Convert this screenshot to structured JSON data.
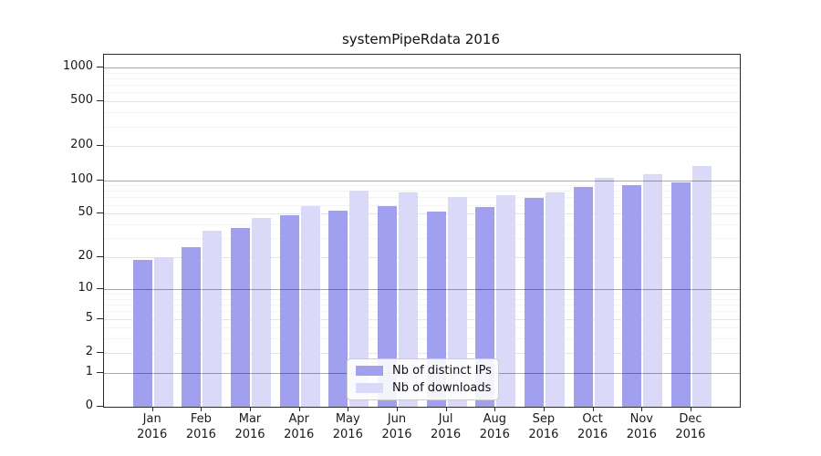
{
  "chart_data": {
    "type": "bar",
    "title": "systemPipeRdata 2016",
    "categories": [
      "Jan",
      "Feb",
      "Mar",
      "Apr",
      "May",
      "Jun",
      "Jul",
      "Aug",
      "Sep",
      "Oct",
      "Nov",
      "Dec"
    ],
    "category_year": "2016",
    "series": [
      {
        "name": "Nb of distinct IPs",
        "color": "#a0a0ee",
        "values": [
          19,
          25,
          37,
          48,
          53,
          59,
          52,
          57,
          69,
          87,
          91,
          95
        ]
      },
      {
        "name": "Nb of downloads",
        "color": "#dadaf8",
        "values": [
          20,
          35,
          46,
          58,
          81,
          78,
          71,
          73,
          77,
          104,
          113,
          134
        ]
      }
    ],
    "y_axis": {
      "scale": "log1p",
      "tick_values": [
        0,
        1,
        2,
        5,
        10,
        20,
        50,
        100,
        200,
        500,
        1000
      ],
      "major_gridlines": [
        1,
        10,
        100,
        1000
      ],
      "mid_gridlines": [
        2,
        5,
        20,
        50,
        200,
        500
      ],
      "minor_gridlines": [
        3,
        4,
        6,
        7,
        8,
        9,
        30,
        40,
        60,
        70,
        80,
        90,
        300,
        400,
        600,
        700,
        800,
        900
      ]
    },
    "legend": {
      "position": "lower-center"
    },
    "grid": true,
    "colors": {
      "spine": "#2b2b2b",
      "background": "#ffffff"
    }
  }
}
